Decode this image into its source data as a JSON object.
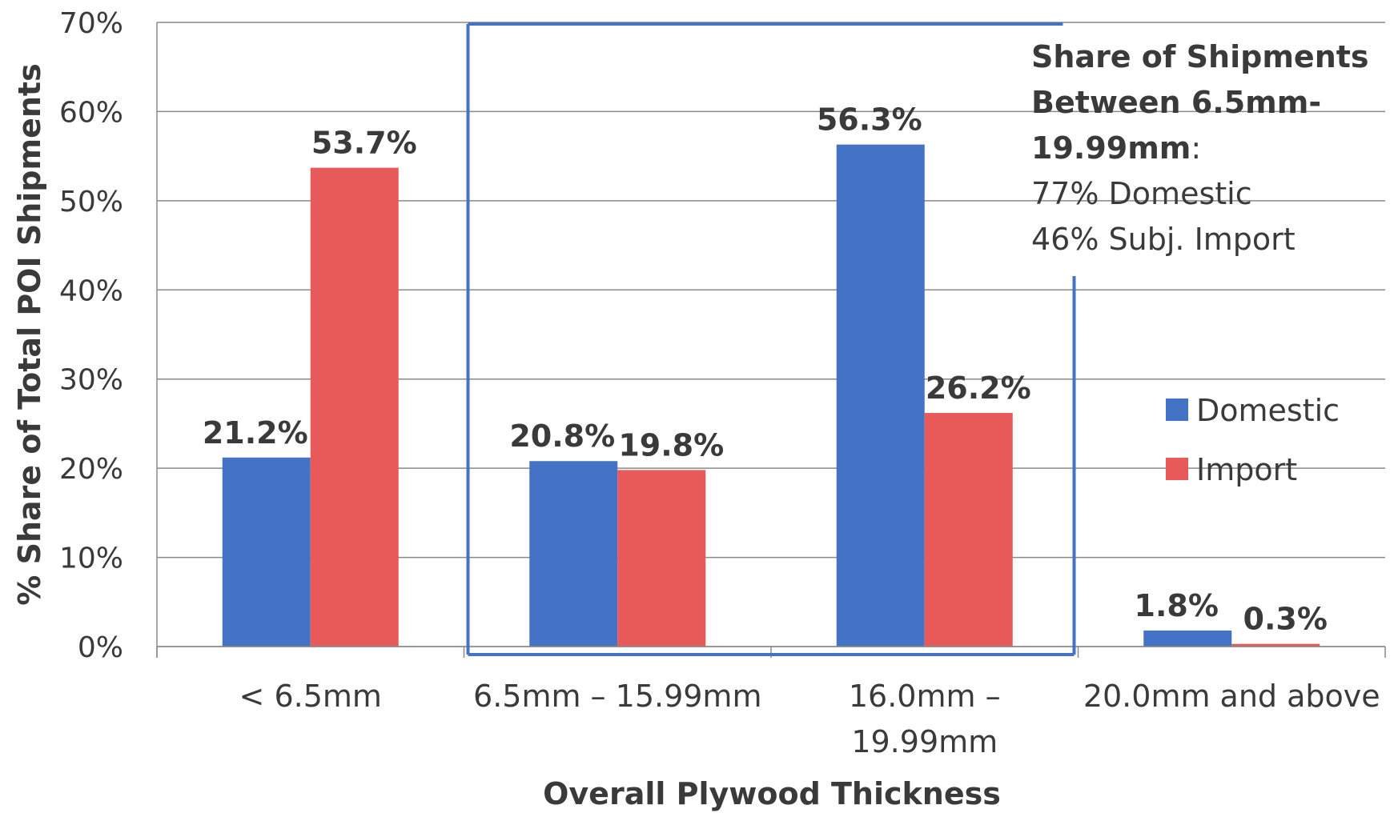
{
  "chart_data": {
    "type": "bar",
    "categories": [
      "< 6.5mm",
      "6.5mm – 15.99mm",
      "16.0mm – 19.99mm",
      "20.0mm and above"
    ],
    "series": [
      {
        "name": "Domestic",
        "color": "#4472c4",
        "values": [
          21.2,
          20.8,
          56.3,
          1.8
        ],
        "data_labels": [
          "21.2%",
          "20.8%",
          "56.3%",
          "1.8%"
        ]
      },
      {
        "name": "Import",
        "color": "#e8595a",
        "values": [
          53.7,
          19.8,
          26.2,
          0.3
        ],
        "data_labels": [
          "53.7%",
          "19.8%",
          "26.2%",
          "0.3%"
        ]
      }
    ],
    "ylim": [
      0,
      70
    ],
    "yticks": [
      0,
      10,
      20,
      30,
      40,
      50,
      60,
      70
    ],
    "ytick_labels": [
      "0%",
      "10%",
      "20%",
      "30%",
      "40%",
      "50%",
      "60%",
      "70%"
    ],
    "xlabel": "Overall Plywood Thickness",
    "ylabel": "% Share of Total POI Shipments",
    "grid": true,
    "legend_position": "right",
    "highlight_box_color": "#4472c4",
    "annotation": {
      "bold_lines": [
        "Share of Shipments",
        "Between 6.5mm-",
        "19.99mm"
      ],
      "bold_suffix": ":",
      "lines": [
        "77% Domestic",
        "46% Subj. Import"
      ]
    }
  }
}
